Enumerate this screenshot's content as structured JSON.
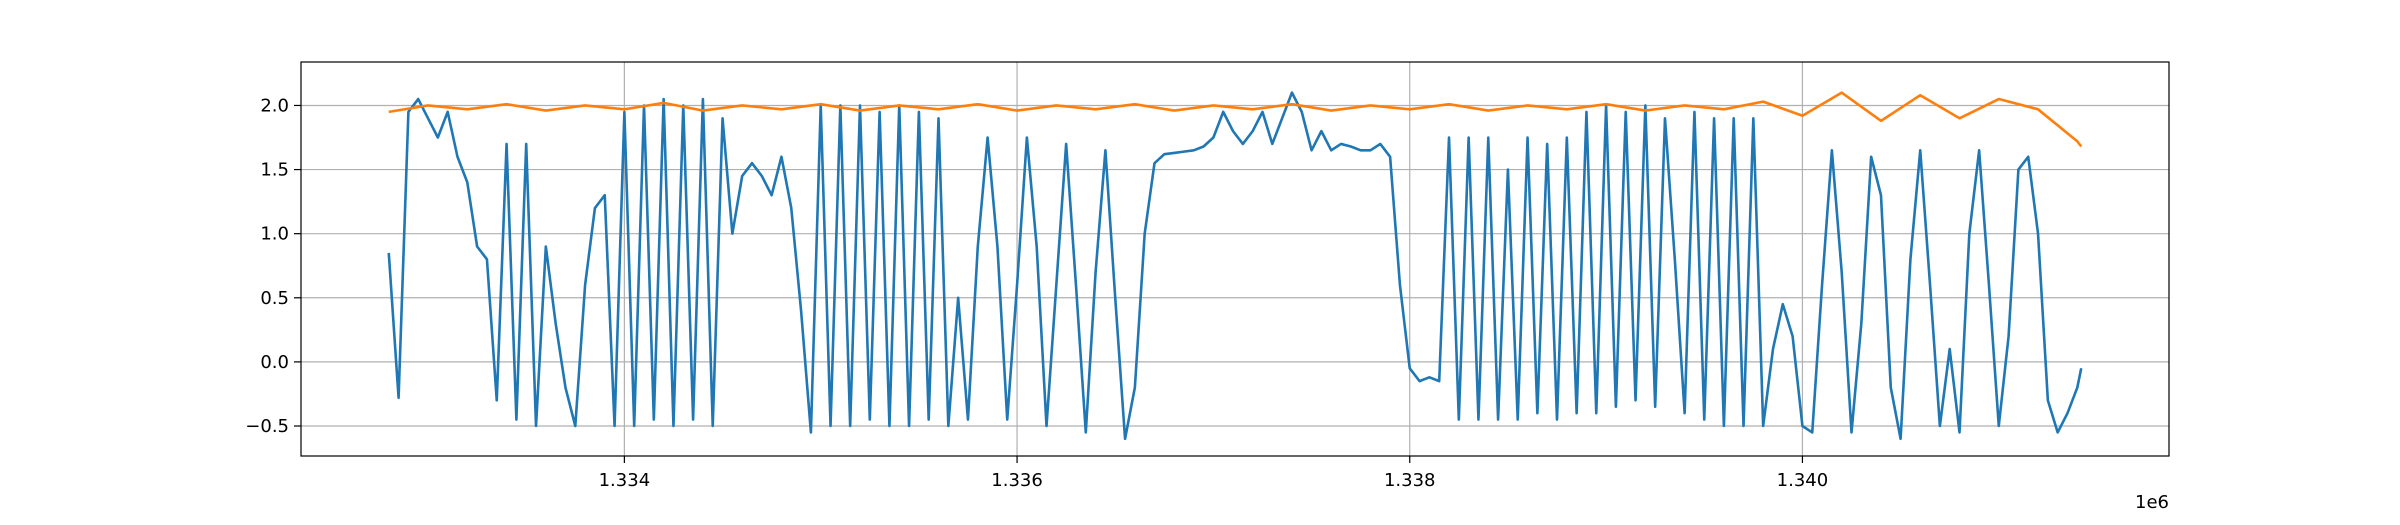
{
  "chart_data": {
    "type": "line",
    "xlim": [
      1332353,
      1341867
    ],
    "ylim": [
      -0.734,
      2.339
    ],
    "xticks": [
      {
        "value": 1334000,
        "label": "1.334"
      },
      {
        "value": 1336000,
        "label": "1.336"
      },
      {
        "value": 1338000,
        "label": "1.338"
      },
      {
        "value": 1340000,
        "label": "1.340"
      }
    ],
    "x_offset_label": "1e6",
    "yticks": [
      {
        "value": -0.5,
        "label": "−0.5"
      },
      {
        "value": 0,
        "label": "0.0"
      },
      {
        "value": 0.5,
        "label": "0.5"
      },
      {
        "value": 1,
        "label": "1.0"
      },
      {
        "value": 1.5,
        "label": "1.5"
      },
      {
        "value": 2,
        "label": "2.0"
      }
    ],
    "grid": true,
    "series": [
      {
        "color": "#1f77b4",
        "x": [
          1332800,
          1332850,
          1332900,
          1332950,
          1333000,
          1333050,
          1333100,
          1333150,
          1333200,
          1333250,
          1333300,
          1333350,
          1333400,
          1333450,
          1333500,
          1333550,
          1333600,
          1333650,
          1333700,
          1333750,
          1333800,
          1333850,
          1333900,
          1333950,
          1334000,
          1334050,
          1334100,
          1334150,
          1334200,
          1334250,
          1334300,
          1334350,
          1334400,
          1334450,
          1334500,
          1334550,
          1334600,
          1334650,
          1334700,
          1334750,
          1334800,
          1334850,
          1334900,
          1334950,
          1335000,
          1335050,
          1335100,
          1335150,
          1335200,
          1335250,
          1335300,
          1335350,
          1335400,
          1335450,
          1335500,
          1335550,
          1335600,
          1335650,
          1335700,
          1335750,
          1335800,
          1335850,
          1335900,
          1335950,
          1336000,
          1336050,
          1336100,
          1336150,
          1336200,
          1336250,
          1336300,
          1336350,
          1336400,
          1336450,
          1336500,
          1336550,
          1336600,
          1336650,
          1336700,
          1336750,
          1336800,
          1336850,
          1336900,
          1336950,
          1337000,
          1337050,
          1337100,
          1337150,
          1337200,
          1337250,
          1337300,
          1337350,
          1337400,
          1337450,
          1337500,
          1337550,
          1337600,
          1337650,
          1337700,
          1337750,
          1337800,
          1337850,
          1337900,
          1337950,
          1338000,
          1338050,
          1338100,
          1338150,
          1338200,
          1338250,
          1338300,
          1338350,
          1338400,
          1338450,
          1338500,
          1338550,
          1338600,
          1338650,
          1338700,
          1338750,
          1338800,
          1338850,
          1338900,
          1338950,
          1339000,
          1339050,
          1339100,
          1339150,
          1339200,
          1339250,
          1339300,
          1339350,
          1339400,
          1339450,
          1339500,
          1339550,
          1339600,
          1339650,
          1339700,
          1339750,
          1339800,
          1339850,
          1339900,
          1339950,
          1340000,
          1340050,
          1340100,
          1340150,
          1340200,
          1340250,
          1340300,
          1340350,
          1340400,
          1340450,
          1340500,
          1340550,
          1340600,
          1340650,
          1340700,
          1340750,
          1340800,
          1340850,
          1340900,
          1340950,
          1341000,
          1341050,
          1341100,
          1341150,
          1341200,
          1341250,
          1341300,
          1341350,
          1341400,
          1341420
        ],
        "values": [
          0.85,
          -0.28,
          1.95,
          2.05,
          1.9,
          1.75,
          1.95,
          1.6,
          1.4,
          0.9,
          0.8,
          -0.3,
          1.7,
          -0.45,
          1.7,
          -0.5,
          0.9,
          0.3,
          -0.2,
          -0.5,
          0.6,
          1.2,
          1.3,
          -0.5,
          1.95,
          -0.5,
          2.0,
          -0.45,
          2.05,
          -0.5,
          2.0,
          -0.45,
          2.05,
          -0.5,
          1.9,
          1.0,
          1.45,
          1.55,
          1.45,
          1.3,
          1.6,
          1.2,
          0.4,
          -0.55,
          2.0,
          -0.5,
          2.0,
          -0.5,
          2.0,
          -0.45,
          1.95,
          -0.5,
          2.0,
          -0.5,
          1.95,
          -0.45,
          1.9,
          -0.5,
          0.5,
          -0.45,
          0.9,
          1.75,
          0.9,
          -0.45,
          0.6,
          1.75,
          0.9,
          -0.5,
          0.6,
          1.7,
          0.6,
          -0.55,
          0.7,
          1.65,
          0.5,
          -0.6,
          -0.2,
          1.0,
          1.55,
          1.62,
          1.63,
          1.64,
          1.65,
          1.68,
          1.75,
          1.95,
          1.8,
          1.7,
          1.8,
          1.95,
          1.7,
          1.9,
          2.1,
          1.95,
          1.65,
          1.8,
          1.65,
          1.7,
          1.68,
          1.65,
          1.65,
          1.7,
          1.6,
          0.6,
          -0.05,
          -0.15,
          -0.12,
          -0.15,
          1.75,
          -0.45,
          1.75,
          -0.45,
          1.75,
          -0.45,
          1.5,
          -0.45,
          1.75,
          -0.4,
          1.7,
          -0.45,
          1.75,
          -0.4,
          1.95,
          -0.4,
          2.0,
          -0.35,
          1.95,
          -0.3,
          2.0,
          -0.35,
          1.9,
          0.8,
          -0.4,
          1.95,
          -0.45,
          1.9,
          -0.5,
          1.9,
          -0.5,
          1.9,
          -0.5,
          0.1,
          0.45,
          0.2,
          -0.5,
          -0.55,
          0.6,
          1.65,
          0.7,
          -0.55,
          0.3,
          1.6,
          1.3,
          -0.2,
          -0.6,
          0.8,
          1.65,
          0.6,
          -0.5,
          0.1,
          -0.55,
          1.0,
          1.65,
          0.6,
          -0.5,
          0.2,
          1.5,
          1.6,
          1.0,
          -0.3,
          -0.55,
          -0.4,
          -0.2,
          -0.05
        ]
      },
      {
        "color": "#ff7f0e",
        "x": [
          1332800,
          1333000,
          1333200,
          1333400,
          1333600,
          1333800,
          1334000,
          1334200,
          1334400,
          1334600,
          1334800,
          1335000,
          1335200,
          1335400,
          1335600,
          1335800,
          1336000,
          1336200,
          1336400,
          1336600,
          1336800,
          1337000,
          1337200,
          1337400,
          1337600,
          1337800,
          1338000,
          1338200,
          1338400,
          1338600,
          1338800,
          1339000,
          1339200,
          1339400,
          1339600,
          1339800,
          1340000,
          1340200,
          1340400,
          1340600,
          1340800,
          1341000,
          1341200,
          1341400,
          1341420
        ],
        "values": [
          1.95,
          2.0,
          1.97,
          2.01,
          1.96,
          2.0,
          1.97,
          2.02,
          1.96,
          2.0,
          1.97,
          2.01,
          1.96,
          2.0,
          1.97,
          2.01,
          1.96,
          2.0,
          1.97,
          2.01,
          1.96,
          2.0,
          1.97,
          2.01,
          1.96,
          2.0,
          1.97,
          2.01,
          1.96,
          2.0,
          1.97,
          2.01,
          1.96,
          2.0,
          1.97,
          2.03,
          1.92,
          2.1,
          1.88,
          2.08,
          1.9,
          2.05,
          1.97,
          1.72,
          1.68
        ]
      }
    ]
  }
}
